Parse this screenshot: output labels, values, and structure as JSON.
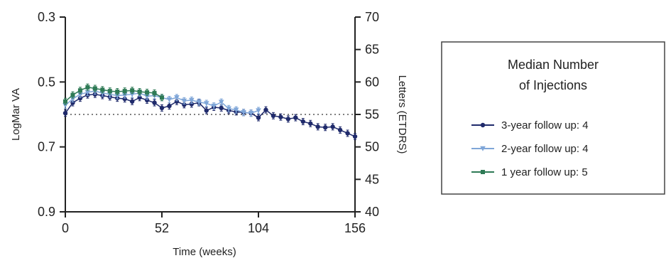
{
  "chart_data": {
    "type": "line",
    "x_label": "Time (weeks)",
    "x_ticks": [
      0,
      52,
      104,
      156
    ],
    "x_range": [
      0,
      156
    ],
    "y_left": {
      "label": "LogMar VA",
      "ticks": [
        0.3,
        0.5,
        0.7,
        0.9
      ],
      "tick_labels": [
        "0.3",
        "0.5",
        "0.7",
        "0.9"
      ],
      "range": [
        0.3,
        0.9
      ],
      "inverted": true
    },
    "y_right": {
      "label": "Letters (ETDRS)",
      "ticks": [
        40,
        45,
        50,
        55,
        60,
        65,
        70
      ],
      "range": [
        40,
        70
      ]
    },
    "reference_line": {
      "y_letters": 55,
      "style": "dotted"
    },
    "legend": {
      "title_line1": "Median Number",
      "title_line2": "of Injections",
      "placement": "right"
    },
    "series": [
      {
        "name": "3-year follow up:  4",
        "color": "#1f2a6b",
        "marker": "circle",
        "points": [
          [
            0,
            55.2
          ],
          [
            4,
            56.8
          ],
          [
            8,
            57.5
          ],
          [
            12,
            58.0
          ],
          [
            16,
            58.1
          ],
          [
            20,
            57.9
          ],
          [
            24,
            57.7
          ],
          [
            28,
            57.5
          ],
          [
            32,
            57.4
          ],
          [
            36,
            57.0
          ],
          [
            40,
            57.6
          ],
          [
            44,
            57.2
          ],
          [
            48,
            56.8
          ],
          [
            52,
            56.0
          ],
          [
            56,
            56.3
          ],
          [
            60,
            57.0
          ],
          [
            64,
            56.5
          ],
          [
            68,
            56.6
          ],
          [
            72,
            56.8
          ],
          [
            76,
            55.6
          ],
          [
            80,
            56.1
          ],
          [
            84,
            56.0
          ],
          [
            88,
            55.6
          ],
          [
            92,
            55.4
          ],
          [
            96,
            55.3
          ],
          [
            100,
            55.2
          ],
          [
            104,
            54.5
          ],
          [
            108,
            55.7
          ],
          [
            112,
            54.8
          ],
          [
            116,
            54.6
          ],
          [
            120,
            54.3
          ],
          [
            124,
            54.5
          ],
          [
            128,
            53.9
          ],
          [
            132,
            53.6
          ],
          [
            136,
            53.1
          ],
          [
            140,
            53.0
          ],
          [
            144,
            53.1
          ],
          [
            148,
            52.6
          ],
          [
            152,
            52.1
          ],
          [
            156,
            51.6
          ]
        ]
      },
      {
        "name": "2-year follow up:  4",
        "color": "#7fa6d8",
        "marker": "triangle-down",
        "points": [
          [
            0,
            56.4
          ],
          [
            4,
            57.4
          ],
          [
            8,
            58.1
          ],
          [
            12,
            58.4
          ],
          [
            16,
            58.6
          ],
          [
            20,
            58.3
          ],
          [
            24,
            58.1
          ],
          [
            28,
            57.9
          ],
          [
            32,
            58.0
          ],
          [
            36,
            58.1
          ],
          [
            40,
            58.3
          ],
          [
            44,
            57.8
          ],
          [
            48,
            57.9
          ],
          [
            52,
            57.6
          ],
          [
            56,
            57.3
          ],
          [
            60,
            57.6
          ],
          [
            64,
            57.1
          ],
          [
            68,
            57.2
          ],
          [
            72,
            56.9
          ],
          [
            76,
            56.7
          ],
          [
            80,
            56.3
          ],
          [
            84,
            56.9
          ],
          [
            88,
            55.9
          ],
          [
            92,
            55.7
          ],
          [
            96,
            55.3
          ],
          [
            100,
            55.2
          ],
          [
            104,
            55.6
          ]
        ]
      },
      {
        "name": "1 year follow up:   5",
        "color": "#2e7a55",
        "marker": "square",
        "points": [
          [
            0,
            57.0
          ],
          [
            4,
            58.0
          ],
          [
            8,
            58.7
          ],
          [
            12,
            59.2
          ],
          [
            16,
            59.0
          ],
          [
            20,
            58.8
          ],
          [
            24,
            58.6
          ],
          [
            28,
            58.5
          ],
          [
            32,
            58.6
          ],
          [
            36,
            58.7
          ],
          [
            40,
            58.5
          ],
          [
            44,
            58.4
          ],
          [
            48,
            58.3
          ],
          [
            52,
            57.6
          ]
        ]
      }
    ]
  }
}
